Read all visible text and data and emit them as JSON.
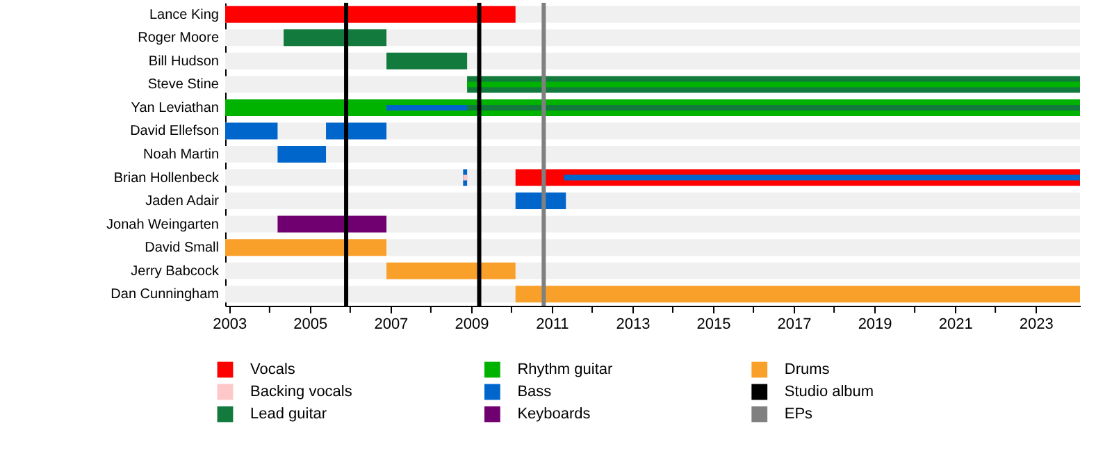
{
  "chart_data": {
    "type": "bar",
    "orientation": "horizontal",
    "categories": [
      "Lance King",
      "Roger Moore",
      "Bill Hudson",
      "Steve Stine",
      "Yan Leviathan",
      "David Ellefson",
      "Noah Martin",
      "Brian Hollenbeck",
      "Jaden Adair",
      "Jonah Weingarten",
      "David Small",
      "Jerry Babcock",
      "Dan Cunningham"
    ],
    "series": [
      {
        "name": "Vocals",
        "color": "#ff0000",
        "base": [
          2002.9,
          null,
          null,
          null,
          null,
          null,
          null,
          2010.1,
          null,
          null,
          null,
          null,
          null
        ],
        "values": [
          7.2,
          null,
          null,
          null,
          null,
          null,
          null,
          14.0,
          null,
          null,
          null,
          null,
          null
        ]
      },
      {
        "color": "#0066cc",
        "base": [
          null,
          null,
          null,
          null,
          null,
          2005.4,
          null,
          2008.8,
          null,
          null,
          null,
          null,
          null
        ],
        "values": [
          null,
          null,
          null,
          null,
          null,
          1.5,
          null,
          0.1,
          null,
          null,
          null,
          null,
          null
        ]
      },
      {
        "name": "Backing vocals",
        "color": "#ffc8c8",
        "base": [
          null,
          null,
          null,
          null,
          null,
          null,
          null,
          2008.8,
          null,
          null,
          null,
          null,
          null
        ],
        "values": [
          null,
          null,
          null,
          null,
          null,
          null,
          null,
          0.1,
          null,
          null,
          null,
          null,
          null
        ]
      },
      {
        "name": "Lead guitar",
        "color": "#117a3c",
        "base": [
          null,
          2004.35,
          2006.9,
          2008.9,
          2008.9,
          null,
          null,
          null,
          null,
          null,
          null,
          null,
          null
        ],
        "values": [
          null,
          2.55,
          2.0,
          15.2,
          15.2,
          null,
          null,
          null,
          null,
          null,
          null,
          null,
          null
        ]
      },
      {
        "name": "Rhythm guitar",
        "color": "#00b300",
        "base": [
          null,
          null,
          null,
          2008.9,
          2002.9,
          null,
          null,
          null,
          null,
          null,
          null,
          null,
          null
        ],
        "values": [
          null,
          null,
          null,
          15.2,
          21.2,
          null,
          null,
          null,
          null,
          null,
          null,
          null,
          null
        ]
      },
      {
        "name": "Bass",
        "color": "#0066cc",
        "base": [
          null,
          null,
          null,
          null,
          2006.9,
          2002.9,
          2004.2,
          2011.3,
          2010.1,
          null,
          null,
          null,
          null
        ],
        "values": [
          null,
          null,
          null,
          null,
          2.0,
          1.3,
          1.2,
          12.8,
          1.25,
          null,
          null,
          null,
          null
        ]
      },
      {
        "name": "Keyboards",
        "color": "#700070",
        "base": [
          null,
          null,
          null,
          null,
          null,
          null,
          null,
          null,
          null,
          2004.2,
          null,
          null,
          null
        ],
        "values": [
          null,
          null,
          null,
          null,
          null,
          null,
          null,
          null,
          null,
          2.7,
          null,
          null,
          null
        ]
      },
      {
        "name": "Drums",
        "color": "#f9a02a",
        "base": [
          null,
          null,
          null,
          null,
          null,
          null,
          null,
          null,
          null,
          null,
          2002.9,
          2006.9,
          2010.1
        ],
        "values": [
          null,
          null,
          null,
          null,
          null,
          null,
          null,
          null,
          null,
          null,
          4.0,
          3.2,
          14.0
        ]
      }
    ],
    "ref_lines": [
      {
        "axis": "x",
        "value": 2005.9,
        "label": "Studio album",
        "color": "#000000"
      },
      {
        "axis": "x",
        "value": 2009.2,
        "color": "#000000"
      },
      {
        "axis": "x",
        "value": 2010.8,
        "label": "EPs",
        "color": "#808080"
      }
    ],
    "xlim": [
      2002.9,
      2024.1
    ],
    "xticks": [
      2003,
      {
        "value": 2004,
        "label": null
      },
      2005,
      {
        "value": 2006,
        "label": null
      },
      2007,
      {
        "value": 2008,
        "label": null
      },
      2009,
      {
        "value": 2010,
        "label": null
      },
      2011,
      {
        "value": 2012,
        "label": null
      },
      2013,
      {
        "value": 2014,
        "label": null
      },
      2015,
      {
        "value": 2016,
        "label": null
      },
      2017,
      {
        "value": 2018,
        "label": null
      },
      2019,
      {
        "value": 2020,
        "label": null
      },
      2021,
      {
        "value": 2022,
        "label": null
      },
      2023
    ],
    "legend": "bottom"
  }
}
